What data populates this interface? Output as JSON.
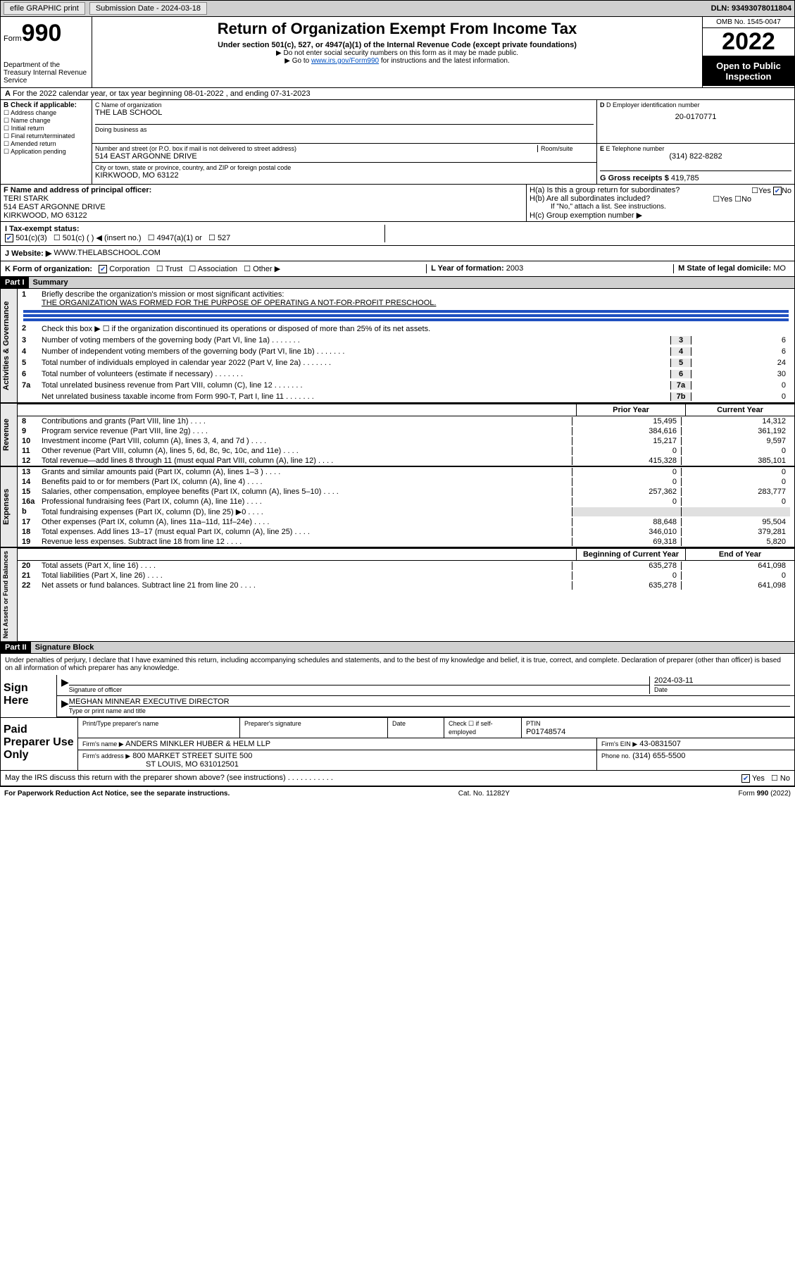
{
  "topbar": {
    "efile": "efile GRAPHIC print",
    "submission": "Submission Date - 2024-03-18",
    "dln": "DLN: 93493078011804"
  },
  "header": {
    "form": "Form",
    "form_no": "990",
    "dept": "Department of the Treasury Internal Revenue Service",
    "title": "Return of Organization Exempt From Income Tax",
    "sub": "Under section 501(c), 527, or 4947(a)(1) of the Internal Revenue Code (except private foundations)",
    "note1": "▶ Do not enter social security numbers on this form as it may be made public.",
    "note2_pre": "▶ Go to ",
    "note2_link": "www.irs.gov/Form990",
    "note2_post": " for instructions and the latest information.",
    "omb": "OMB No. 1545-0047",
    "year": "2022",
    "open": "Open to Public Inspection"
  },
  "period": "For the 2022 calendar year, or tax year beginning 08-01-2022   , and ending 07-31-2023",
  "colB": {
    "hdr": "B Check if applicable:",
    "items": [
      "Address change",
      "Name change",
      "Initial return",
      "Final return/terminated",
      "Amended return",
      "Application pending"
    ]
  },
  "org": {
    "name_lbl": "C Name of organization",
    "name": "THE LAB SCHOOL",
    "dba_lbl": "Doing business as",
    "addr_lbl": "Number and street (or P.O. box if mail is not delivered to street address)",
    "room_lbl": "Room/suite",
    "addr": "514 EAST ARGONNE DRIVE",
    "city_lbl": "City or town, state or province, country, and ZIP or foreign postal code",
    "city": "KIRKWOOD, MO  63122",
    "ein_lbl": "D Employer identification number",
    "ein": "20-0170771",
    "tele_lbl": "E Telephone number",
    "tele": "(314) 822-8282",
    "gross_lbl": "G Gross receipts $",
    "gross": "419,785"
  },
  "f": {
    "lbl": "F Name and address of principal officer:",
    "name": "TERI STARK",
    "addr1": "514 EAST ARGONNE DRIVE",
    "addr2": "KIRKWOOD, MO  63122"
  },
  "h": {
    "a": "H(a)  Is this a group return for subordinates?",
    "b": "H(b)  Are all subordinates included?",
    "b_note": "If \"No,\" attach a list. See instructions.",
    "c": "H(c)  Group exemption number ▶"
  },
  "i": {
    "lbl": "I   Tax-exempt status:",
    "opts": [
      "501(c)(3)",
      "501(c) (  ) ◀ (insert no.)",
      "4947(a)(1) or",
      "527"
    ]
  },
  "j": {
    "lbl": "J   Website: ▶",
    "val": "WWW.THELABSCHOOL.COM"
  },
  "k": {
    "lbl": "K Form of organization:",
    "opts": [
      "Corporation",
      "Trust",
      "Association",
      "Other ▶"
    ],
    "l_lbl": "L Year of formation:",
    "l_val": "2003",
    "m_lbl": "M State of legal domicile:",
    "m_val": "MO"
  },
  "part1": {
    "hdr": "Part I",
    "title": "Summary"
  },
  "summary": {
    "sec1_label": "Activities & Governance",
    "line1_lbl": "Briefly describe the organization's mission or most significant activities:",
    "line1_val": "THE ORGANIZATION WAS FORMED FOR THE PURPOSE OF OPERATING A NOT-FOR-PROFIT PRESCHOOL.",
    "line2": "Check this box ▶ ☐ if the organization discontinued its operations or disposed of more than 25% of its net assets.",
    "rows1": [
      {
        "n": "3",
        "d": "Number of voting members of the governing body (Part VI, line 1a)",
        "k": "3",
        "v": "6"
      },
      {
        "n": "4",
        "d": "Number of independent voting members of the governing body (Part VI, line 1b)",
        "k": "4",
        "v": "6"
      },
      {
        "n": "5",
        "d": "Total number of individuals employed in calendar year 2022 (Part V, line 2a)",
        "k": "5",
        "v": "24"
      },
      {
        "n": "6",
        "d": "Total number of volunteers (estimate if necessary)",
        "k": "6",
        "v": "30"
      },
      {
        "n": "7a",
        "d": "Total unrelated business revenue from Part VIII, column (C), line 12",
        "k": "7a",
        "v": "0"
      },
      {
        "n": "",
        "d": "Net unrelated business taxable income from Form 990-T, Part I, line 11",
        "k": "7b",
        "v": "0"
      }
    ],
    "col_hdrs": {
      "prior": "Prior Year",
      "current": "Current Year",
      "beg": "Beginning of Current Year",
      "end": "End of Year"
    },
    "sec2_label": "Revenue",
    "rows2": [
      {
        "n": "8",
        "d": "Contributions and grants (Part VIII, line 1h)",
        "p": "15,495",
        "c": "14,312"
      },
      {
        "n": "9",
        "d": "Program service revenue (Part VIII, line 2g)",
        "p": "384,616",
        "c": "361,192"
      },
      {
        "n": "10",
        "d": "Investment income (Part VIII, column (A), lines 3, 4, and 7d )",
        "p": "15,217",
        "c": "9,597"
      },
      {
        "n": "11",
        "d": "Other revenue (Part VIII, column (A), lines 5, 6d, 8c, 9c, 10c, and 11e)",
        "p": "0",
        "c": "0"
      },
      {
        "n": "12",
        "d": "Total revenue—add lines 8 through 11 (must equal Part VIII, column (A), line 12)",
        "p": "415,328",
        "c": "385,101"
      }
    ],
    "sec3_label": "Expenses",
    "rows3": [
      {
        "n": "13",
        "d": "Grants and similar amounts paid (Part IX, column (A), lines 1–3 )",
        "p": "0",
        "c": "0"
      },
      {
        "n": "14",
        "d": "Benefits paid to or for members (Part IX, column (A), line 4)",
        "p": "0",
        "c": "0"
      },
      {
        "n": "15",
        "d": "Salaries, other compensation, employee benefits (Part IX, column (A), lines 5–10)",
        "p": "257,362",
        "c": "283,777"
      },
      {
        "n": "16a",
        "d": "Professional fundraising fees (Part IX, column (A), line 11e)",
        "p": "0",
        "c": "0"
      },
      {
        "n": "b",
        "d": "Total fundraising expenses (Part IX, column (D), line 25) ▶0",
        "p": "",
        "c": ""
      },
      {
        "n": "17",
        "d": "Other expenses (Part IX, column (A), lines 11a–11d, 11f–24e)",
        "p": "88,648",
        "c": "95,504"
      },
      {
        "n": "18",
        "d": "Total expenses. Add lines 13–17 (must equal Part IX, column (A), line 25)",
        "p": "346,010",
        "c": "379,281"
      },
      {
        "n": "19",
        "d": "Revenue less expenses. Subtract line 18 from line 12",
        "p": "69,318",
        "c": "5,820"
      }
    ],
    "sec4_label": "Net Assets or Fund Balances",
    "rows4": [
      {
        "n": "20",
        "d": "Total assets (Part X, line 16)",
        "p": "635,278",
        "c": "641,098"
      },
      {
        "n": "21",
        "d": "Total liabilities (Part X, line 26)",
        "p": "0",
        "c": "0"
      },
      {
        "n": "22",
        "d": "Net assets or fund balances. Subtract line 21 from line 20",
        "p": "635,278",
        "c": "641,098"
      }
    ]
  },
  "part2": {
    "hdr": "Part II",
    "title": "Signature Block"
  },
  "sig": {
    "decl": "Under penalties of perjury, I declare that I have examined this return, including accompanying schedules and statements, and to the best of my knowledge and belief, it is true, correct, and complete. Declaration of preparer (other than officer) is based on all information of which preparer has any knowledge.",
    "sign_here": "Sign Here",
    "sig_officer": "Signature of officer",
    "date": "2024-03-11",
    "date_lbl": "Date",
    "name": "MEGHAN MINNEAR EXECUTIVE DIRECTOR",
    "name_lbl": "Type or print name and title"
  },
  "prep": {
    "label": "Paid Preparer Use Only",
    "h1": "Print/Type preparer's name",
    "h2": "Preparer's signature",
    "h3": "Date",
    "h4_pre": "Check ☐ if self-employed",
    "h5": "PTIN",
    "ptin": "P01748574",
    "firm_lbl": "Firm's name    ▶",
    "firm": "ANDERS MINKLER HUBER & HELM LLP",
    "firm_ein_lbl": "Firm's EIN ▶",
    "firm_ein": "43-0831507",
    "addr_lbl": "Firm's address ▶",
    "addr1": "800 MARKET STREET SUITE 500",
    "addr2": "ST LOUIS, MO  631012501",
    "phone_lbl": "Phone no.",
    "phone": "(314) 655-5500"
  },
  "footer": {
    "discuss": "May the IRS discuss this return with the preparer shown above? (see instructions)",
    "pra": "For Paperwork Reduction Act Notice, see the separate instructions.",
    "cat": "Cat. No. 11282Y",
    "form": "Form 990 (2022)"
  }
}
